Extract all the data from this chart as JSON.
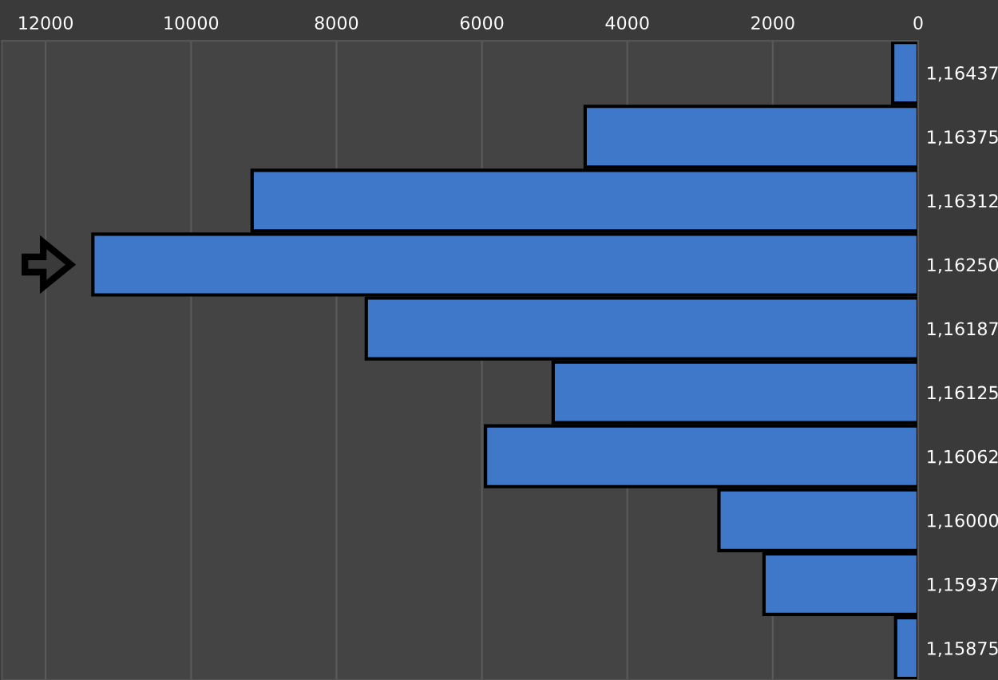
{
  "chart_data": {
    "type": "bar",
    "orientation": "horizontal",
    "categories": [
      "1,16437",
      "1,16375",
      "1,16312",
      "1,16250",
      "1,16187",
      "1,16125",
      "1,16062",
      "1,16000",
      "1,15937",
      "1,15875"
    ],
    "values": [
      350,
      4580,
      9160,
      11350,
      7590,
      5020,
      5950,
      2740,
      2120,
      310
    ],
    "color": "#3f78c8",
    "xlim": [
      12600,
      0
    ],
    "xticks": [
      12000,
      10000,
      8000,
      6000,
      4000,
      2000,
      0
    ],
    "grid": "x"
  }
}
